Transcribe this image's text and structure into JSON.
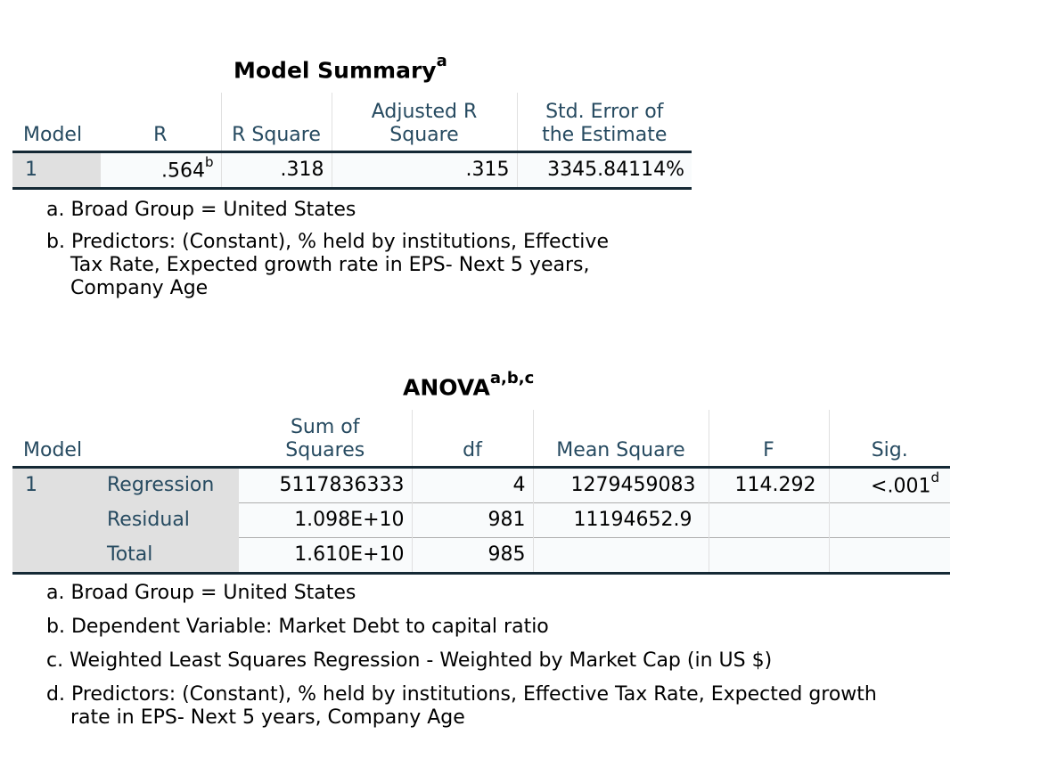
{
  "model_summary": {
    "title": "Model Summary",
    "title_sup": "a",
    "headers": [
      "Model",
      "R",
      "R Square",
      "Adjusted R Square",
      "Std. Error of the Estimate"
    ],
    "row": {
      "model": "1",
      "r": ".564",
      "r_sup": "b",
      "r_square": ".318",
      "adj_r_square": ".315",
      "std_error": "3345.84114%"
    },
    "footnotes": {
      "a": "a. Broad Group = United States",
      "b_line1": "b. Predictors: (Constant), % held by institutions, Effective",
      "b_line2": "Tax Rate, Expected growth rate in EPS- Next 5 years,",
      "b_line3": "Company Age"
    }
  },
  "anova": {
    "title": "ANOVA",
    "title_sup": "a,b,c",
    "headers": [
      "Model",
      "Sum of Squares",
      "df",
      "Mean Square",
      "F",
      "Sig."
    ],
    "model": "1",
    "rows": [
      {
        "label": "Regression",
        "ss": "5117836333",
        "df": "4",
        "ms": "1279459083",
        "f": "114.292",
        "sig": "<.001",
        "sig_sup": "d"
      },
      {
        "label": "Residual",
        "ss": "1.098E+10",
        "df": "981",
        "ms": "11194652.9",
        "f": "",
        "sig": ""
      },
      {
        "label": "Total",
        "ss": "1.610E+10",
        "df": "985",
        "ms": "",
        "f": "",
        "sig": ""
      }
    ],
    "footnotes": {
      "a": "a. Broad Group = United States",
      "b": "b. Dependent Variable: Market Debt to capital ratio",
      "c": "c. Weighted Least Squares Regression - Weighted by Market Cap (in US $)",
      "d_line1": "d. Predictors: (Constant), % held by institutions, Effective Tax Rate, Expected growth",
      "d_line2": "rate in EPS- Next 5 years, Company Age"
    }
  }
}
